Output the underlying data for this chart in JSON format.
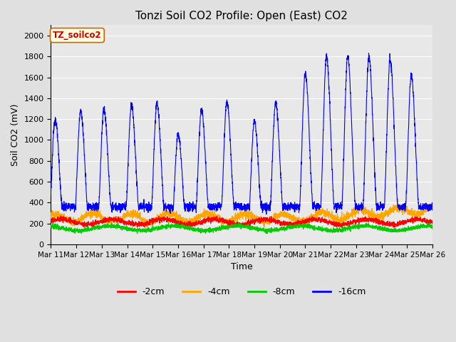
{
  "title": "Tonzi Soil CO2 Profile: Open (East) CO2",
  "ylabel": "Soil CO2 (mV)",
  "xlabel": "Time",
  "watermark": "TZ_soilco2",
  "ylim": [
    0,
    2100
  ],
  "legend": [
    {
      "label": "-2cm",
      "color": "#ff0000"
    },
    {
      "label": "-4cm",
      "color": "#ffa500"
    },
    {
      "label": "-8cm",
      "color": "#00cc00"
    },
    {
      "label": "-16cm",
      "color": "#0000ff"
    }
  ],
  "background_color": "#e0e0e0",
  "plot_bg_color": "#e8e8e8",
  "grid_color": "#ffffff",
  "title_fontsize": 11,
  "label_fontsize": 9,
  "tick_fontsize": 7.5
}
